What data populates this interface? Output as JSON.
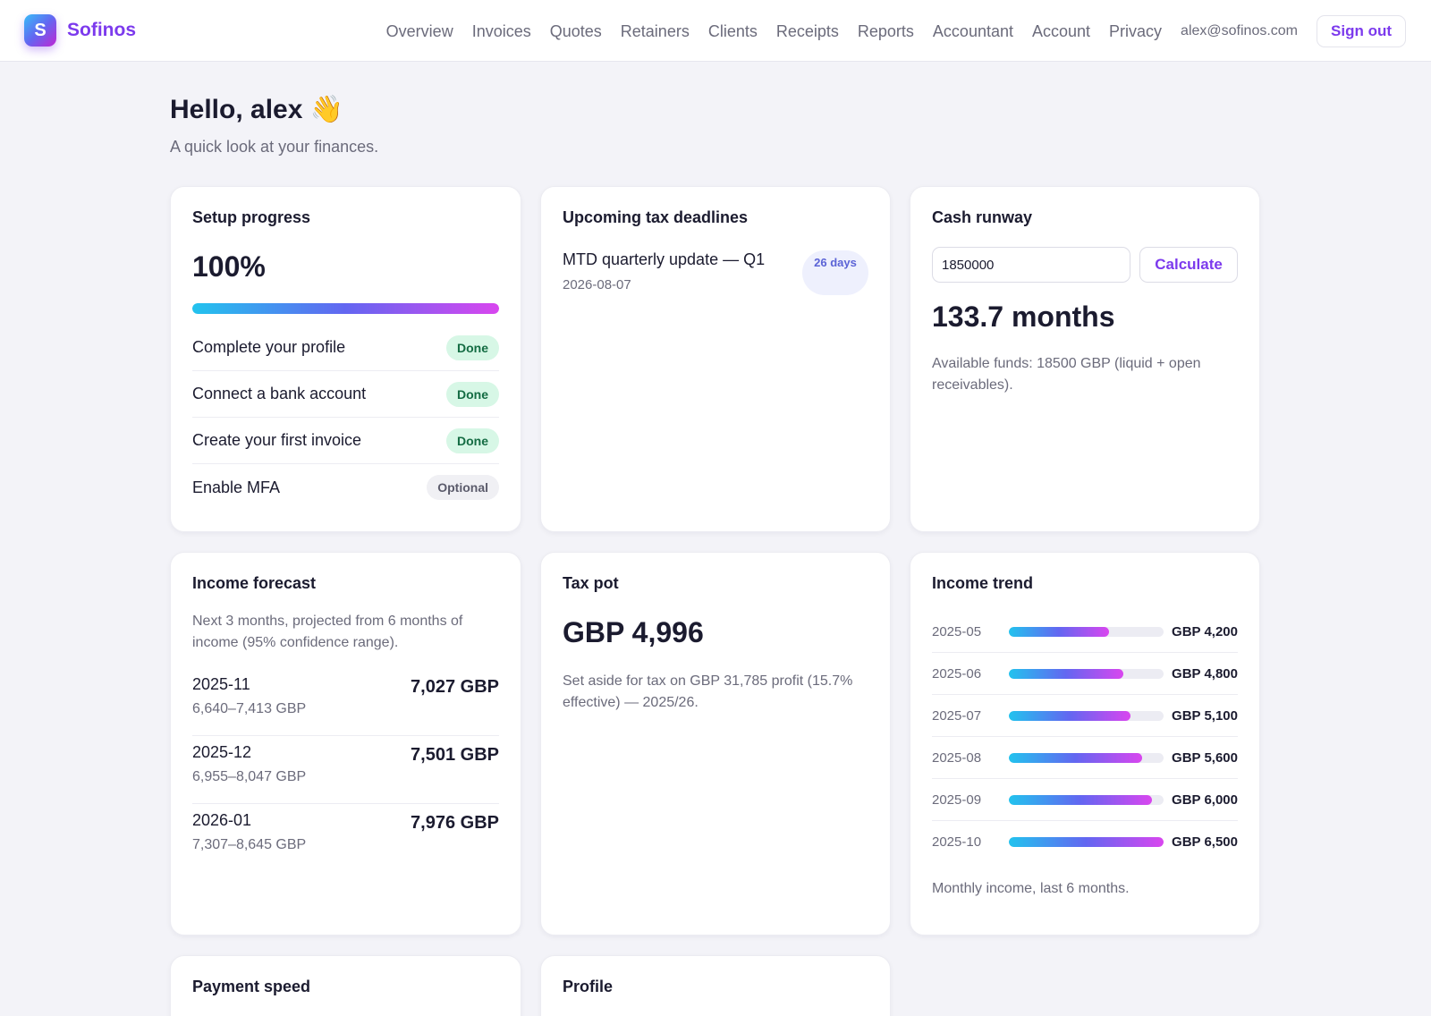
{
  "nav": {
    "brand_letter": "S",
    "brand_name": "Sofinos",
    "links": [
      "Overview",
      "Invoices",
      "Quotes",
      "Retainers",
      "Clients",
      "Receipts",
      "Reports",
      "Accountant",
      "Account",
      "Privacy"
    ],
    "email": "alex@sofinos.com",
    "signout": "Sign out"
  },
  "header": {
    "greeting": "Hello, alex 👋",
    "subtitle": "A quick look at your finances."
  },
  "setup": {
    "title": "Setup progress",
    "percent_label": "100%",
    "progress": 1.0,
    "tasks": [
      {
        "label": "Complete your profile",
        "status": "Done"
      },
      {
        "label": "Connect a bank account",
        "status": "Done"
      },
      {
        "label": "Create your first invoice",
        "status": "Done"
      },
      {
        "label": "Enable MFA",
        "status": "Optional"
      }
    ]
  },
  "tax_deadlines": {
    "title": "Upcoming tax deadlines",
    "items": [
      {
        "name": "MTD quarterly update — Q1",
        "date": "2026-08-07",
        "days": "26 days"
      }
    ]
  },
  "runway": {
    "title": "Cash runway",
    "input_value": "1850000",
    "button": "Calculate",
    "result": "133.7 months",
    "note": "Available funds: 18500 GBP (liquid + open receivables)."
  },
  "forecast": {
    "title": "Income forecast",
    "description": "Next 3 months, projected from 6 months of income (95% confidence range).",
    "rows": [
      {
        "month": "2025-11",
        "range": "6,640–7,413 GBP",
        "value": "7,027 GBP"
      },
      {
        "month": "2025-12",
        "range": "6,955–8,047 GBP",
        "value": "7,501 GBP"
      },
      {
        "month": "2026-01",
        "range": "7,307–8,645 GBP",
        "value": "7,976 GBP"
      }
    ]
  },
  "tax_pot": {
    "title": "Tax pot",
    "value": "GBP 4,996",
    "note": "Set aside for tax on GBP 31,785 profit (15.7% effective) — 2025/26."
  },
  "income_trend": {
    "title": "Income trend",
    "max": 6500,
    "rows": [
      {
        "month": "2025-05",
        "amount": 4200,
        "label": "GBP 4,200"
      },
      {
        "month": "2025-06",
        "amount": 4800,
        "label": "GBP 4,800"
      },
      {
        "month": "2025-07",
        "amount": 5100,
        "label": "GBP 5,100"
      },
      {
        "month": "2025-08",
        "amount": 5600,
        "label": "GBP 5,600"
      },
      {
        "month": "2025-09",
        "amount": 6000,
        "label": "GBP 6,000"
      },
      {
        "month": "2025-10",
        "amount": 6500,
        "label": "GBP 6,500"
      }
    ],
    "note": "Monthly income, last 6 months."
  },
  "payment_speed": {
    "title": "Payment speed"
  },
  "profile": {
    "title": "Profile"
  }
}
